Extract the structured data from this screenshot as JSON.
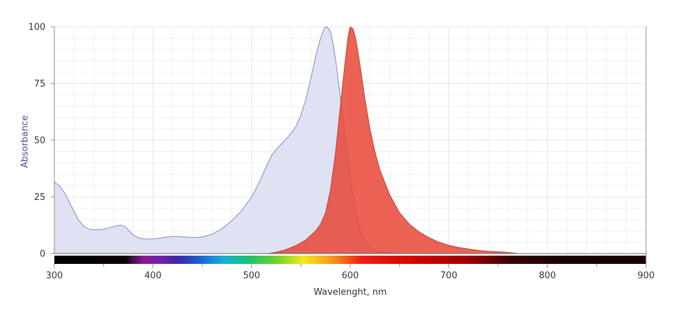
{
  "chart_data": {
    "type": "area",
    "title": "",
    "xlabel": "Wavelenght, nm",
    "ylabel": "Absorbance",
    "xlim": [
      300,
      900
    ],
    "ylim": [
      0,
      100
    ],
    "x_ticks": [
      300,
      400,
      500,
      600,
      700,
      800,
      900
    ],
    "y_ticks": [
      0,
      25,
      50,
      75,
      100
    ],
    "grid": true,
    "spectrum_bar": true,
    "series": [
      {
        "fill": "#dfe2f3",
        "stroke": "#7f86c4",
        "points": [
          [
            300,
            31.5
          ],
          [
            305,
            30
          ],
          [
            310,
            27
          ],
          [
            315,
            23
          ],
          [
            320,
            18.5
          ],
          [
            325,
            14.5
          ],
          [
            330,
            12
          ],
          [
            335,
            10.8
          ],
          [
            340,
            10.5
          ],
          [
            345,
            10.6
          ],
          [
            350,
            10.8
          ],
          [
            355,
            11.3
          ],
          [
            360,
            11.9
          ],
          [
            365,
            12.4
          ],
          [
            368,
            12.5
          ],
          [
            372,
            11.8
          ],
          [
            376,
            10
          ],
          [
            380,
            8.2
          ],
          [
            385,
            7
          ],
          [
            390,
            6.5
          ],
          [
            395,
            6.4
          ],
          [
            400,
            6.5
          ],
          [
            410,
            7
          ],
          [
            420,
            7.6
          ],
          [
            430,
            7.4
          ],
          [
            440,
            7.1
          ],
          [
            450,
            7.3
          ],
          [
            460,
            8.5
          ],
          [
            470,
            11
          ],
          [
            480,
            14.5
          ],
          [
            490,
            19
          ],
          [
            500,
            25
          ],
          [
            505,
            29
          ],
          [
            510,
            33.5
          ],
          [
            515,
            38.5
          ],
          [
            520,
            43
          ],
          [
            525,
            46
          ],
          [
            530,
            48.3
          ],
          [
            535,
            50.5
          ],
          [
            540,
            53
          ],
          [
            545,
            56
          ],
          [
            550,
            61
          ],
          [
            555,
            68
          ],
          [
            560,
            77
          ],
          [
            565,
            87
          ],
          [
            570,
            95
          ],
          [
            574,
            99.5
          ],
          [
            576,
            100
          ],
          [
            580,
            98
          ],
          [
            583,
            92
          ],
          [
            586,
            83
          ],
          [
            590,
            69
          ],
          [
            595,
            51
          ],
          [
            600,
            34
          ],
          [
            603,
            25
          ],
          [
            606,
            17
          ],
          [
            610,
            10
          ],
          [
            615,
            5
          ],
          [
            620,
            2.6
          ],
          [
            625,
            1.2
          ],
          [
            630,
            0.6
          ],
          [
            640,
            0.2
          ],
          [
            650,
            0.1
          ]
        ]
      },
      {
        "fill": "#e8412f",
        "stroke": "#c0392b",
        "points": [
          [
            517,
            0
          ],
          [
            525,
            0.6
          ],
          [
            535,
            1.8
          ],
          [
            545,
            3.5
          ],
          [
            555,
            6
          ],
          [
            565,
            10
          ],
          [
            570,
            13
          ],
          [
            575,
            18
          ],
          [
            580,
            28
          ],
          [
            585,
            44
          ],
          [
            590,
            65
          ],
          [
            595,
            85
          ],
          [
            598,
            96
          ],
          [
            600,
            100
          ],
          [
            603,
            99
          ],
          [
            606,
            94
          ],
          [
            610,
            83
          ],
          [
            615,
            68
          ],
          [
            620,
            55
          ],
          [
            625,
            45
          ],
          [
            630,
            37
          ],
          [
            640,
            26
          ],
          [
            650,
            18
          ],
          [
            660,
            13
          ],
          [
            670,
            9.5
          ],
          [
            680,
            7
          ],
          [
            690,
            5
          ],
          [
            700,
            3.7
          ],
          [
            710,
            2.7
          ],
          [
            720,
            2
          ],
          [
            730,
            1.4
          ],
          [
            740,
            1
          ],
          [
            750,
            0.8
          ],
          [
            760,
            0.5
          ],
          [
            770,
            0
          ]
        ]
      }
    ]
  }
}
